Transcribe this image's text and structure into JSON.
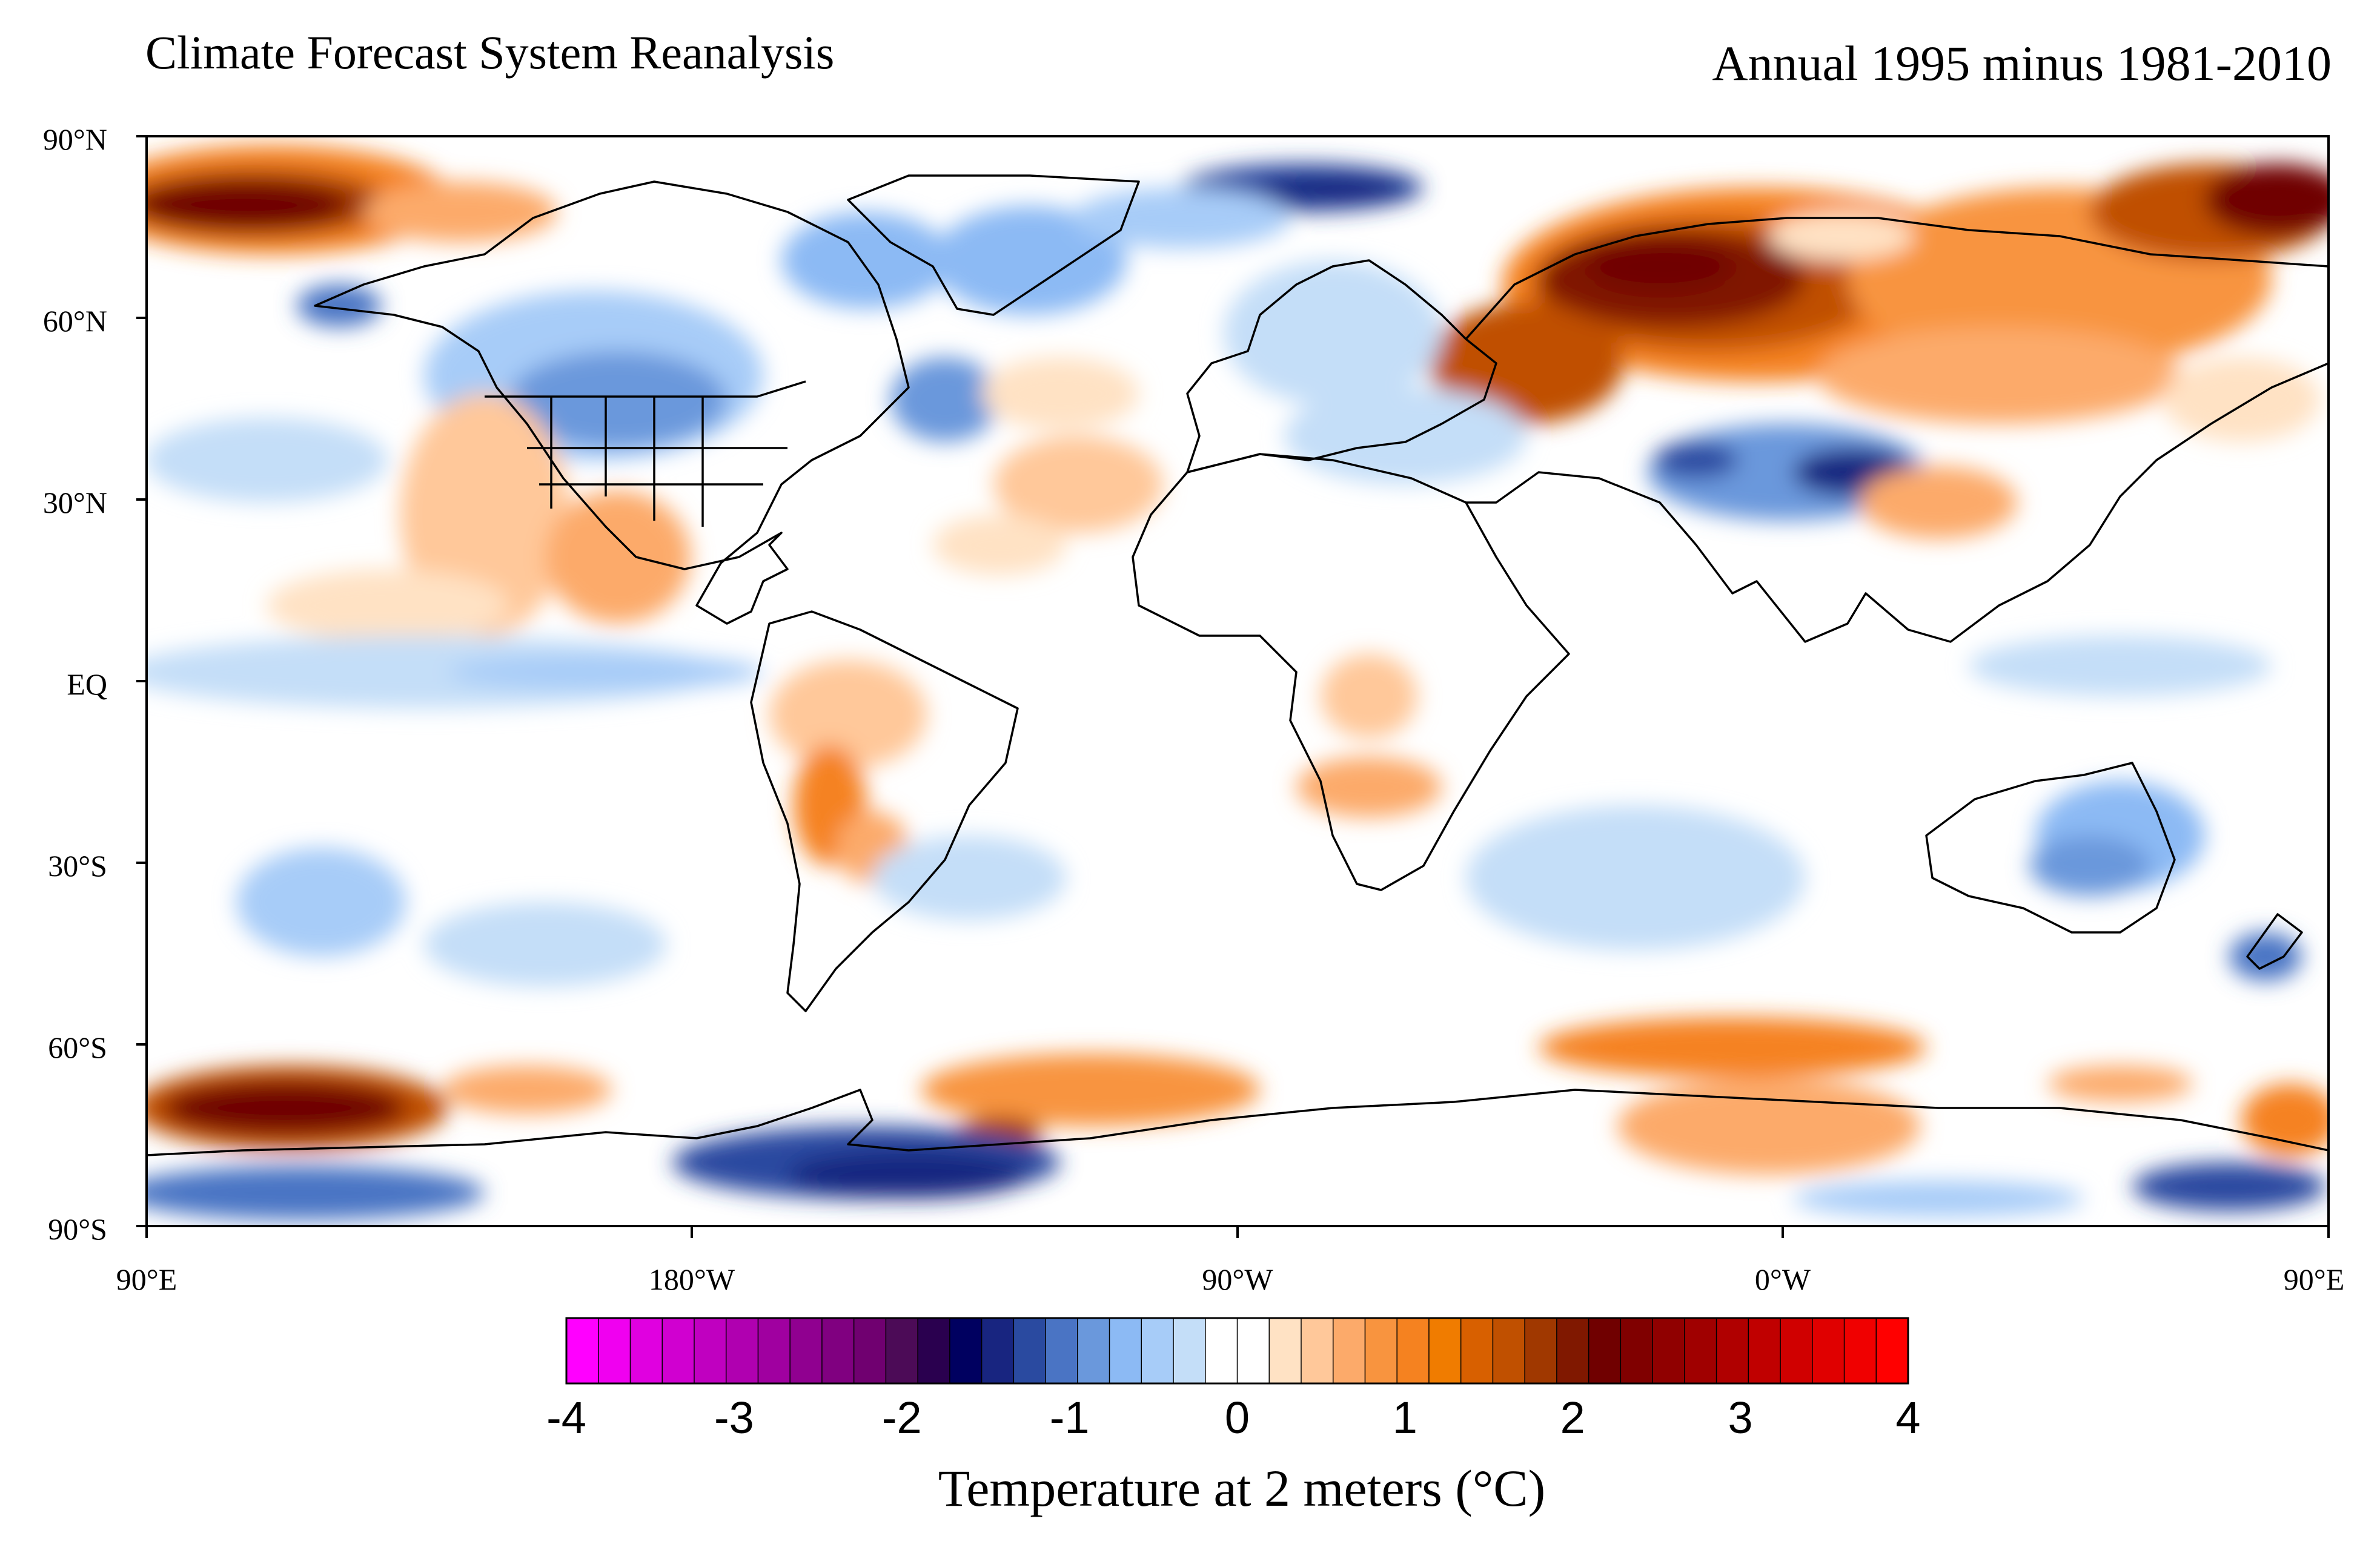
{
  "header": {
    "title_left": "Climate Forecast System Reanalysis",
    "title_right": "Annual 1995 minus 1981-2010"
  },
  "map": {
    "projection": "equirectangular",
    "latitude_labels": [
      "90°N",
      "60°N",
      "30°N",
      "EQ",
      "30°S",
      "60°S",
      "90°S"
    ],
    "longitude_labels": [
      "90°E",
      "180°W",
      "90°W",
      "0°W",
      "90°E"
    ]
  },
  "colorbar": {
    "title": "Temperature at 2 meters (°C)",
    "tick_labels": [
      "-4",
      "-3",
      "-2",
      "-1",
      "0",
      "1",
      "2",
      "3",
      "4"
    ],
    "range": [
      -4,
      4
    ],
    "step": 0.2,
    "colors": [
      "#ff00ff",
      "#f000f0",
      "#e000e0",
      "#d000d0",
      "#c000c0",
      "#b000b0",
      "#a000a0",
      "#900090",
      "#800080",
      "#700070",
      "#4c0b57",
      "#2a004f",
      "#000060",
      "#182580",
      "#2a4aa0",
      "#4a74c4",
      "#6a98dc",
      "#8cbaf4",
      "#a7ccf8",
      "#c4def8",
      "#ffffff",
      "#ffffff",
      "#ffe2c4",
      "#ffc89a",
      "#fcaa6a",
      "#f8943f",
      "#f58220",
      "#f07c00",
      "#d86000",
      "#c05000",
      "#a03800",
      "#801800",
      "#700000",
      "#800000",
      "#900000",
      "#a00000",
      "#b00000",
      "#c00000",
      "#d00000",
      "#e00000",
      "#f00000",
      "#ff0000"
    ]
  }
}
